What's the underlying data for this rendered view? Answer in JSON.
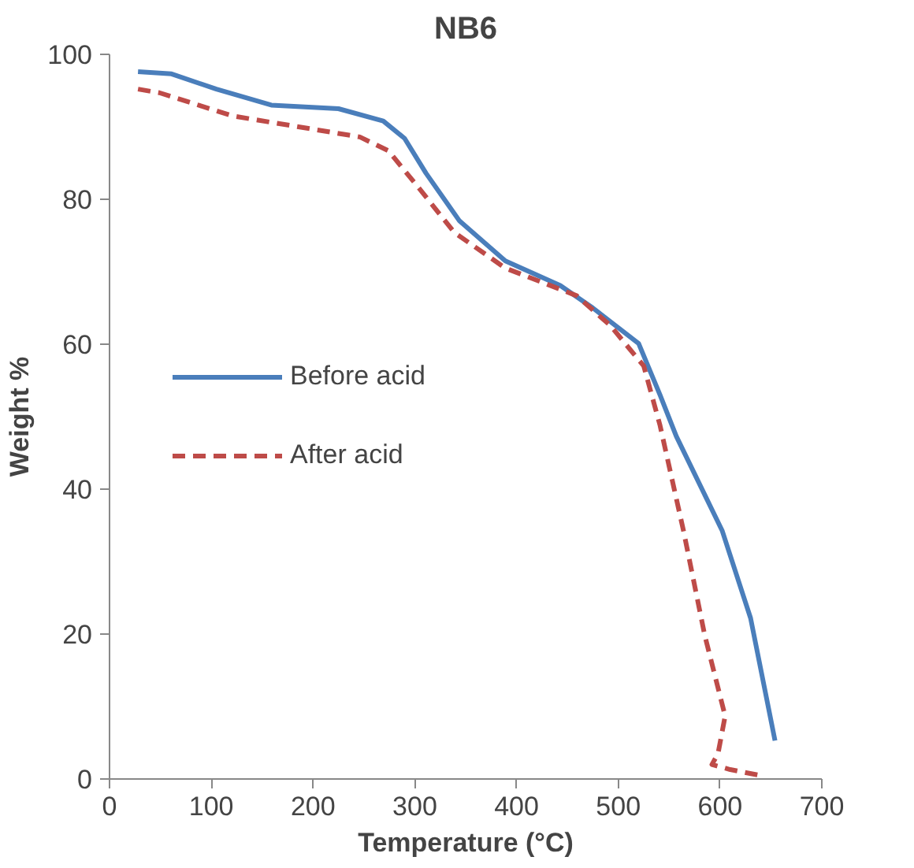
{
  "chart_data": {
    "type": "line",
    "title": "NB6",
    "xlabel": "Temperature (°C)",
    "ylabel": "Weight %",
    "xlim": [
      0,
      700
    ],
    "xticks": [
      0,
      100,
      200,
      300,
      400,
      500,
      600,
      700
    ],
    "ylim": [
      0,
      100
    ],
    "yticks": [
      0,
      20,
      40,
      60,
      80,
      100
    ],
    "grid": false,
    "legend": "left",
    "marker": "none",
    "series": [
      {
        "name": "Before acid",
        "color": "#4a7ebb",
        "line_style": "solid",
        "x": [
          28,
          61,
          105,
          159,
          225,
          269,
          290,
          311,
          344,
          389,
          443,
          475,
          520,
          541,
          557,
          602,
          630,
          654
        ],
        "values": [
          97.6,
          97.3,
          95.2,
          93,
          92.5,
          90.8,
          88.4,
          83.6,
          77,
          71.5,
          68.1,
          65,
          60.1,
          53,
          47.3,
          34.3,
          22.2,
          5.3
        ]
      },
      {
        "name": "After acid",
        "color": "#be4b48",
        "line_style": "dashed",
        "x": [
          28,
          49,
          121,
          203,
          246,
          274,
          302,
          339,
          389,
          459,
          492,
          525,
          541,
          564,
          585,
          605,
          598,
          592,
          610,
          639
        ],
        "values": [
          95.2,
          94.7,
          91.5,
          89.6,
          88.6,
          86.7,
          81.9,
          75.4,
          70.5,
          66.7,
          62.6,
          57,
          48.8,
          34.3,
          19.8,
          8.7,
          3.5,
          2,
          1.3,
          0.5
        ]
      }
    ]
  }
}
